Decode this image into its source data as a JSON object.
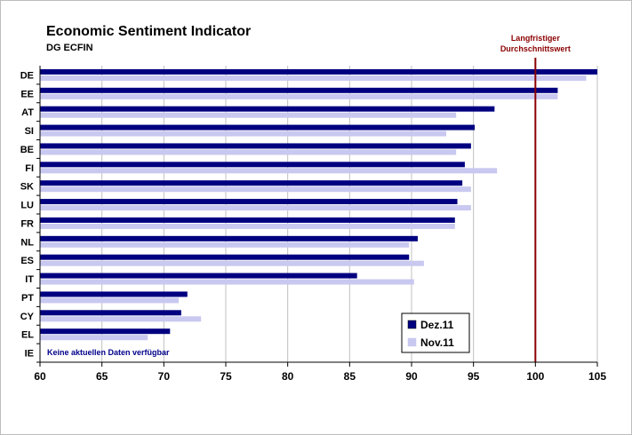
{
  "chart_data": {
    "type": "bar",
    "orientation": "horizontal",
    "title": "Economic Sentiment Indicator",
    "subtitle": "DG ECFIN",
    "categories": [
      "DE",
      "EE",
      "AT",
      "SI",
      "BE",
      "FI",
      "SK",
      "LU",
      "FR",
      "NL",
      "ES",
      "IT",
      "PT",
      "CY",
      "EL",
      "IE"
    ],
    "series": [
      {
        "name": "Dez.11",
        "color": "#000080",
        "values": [
          105.0,
          101.8,
          96.7,
          95.1,
          94.8,
          94.3,
          94.1,
          93.7,
          93.5,
          90.5,
          89.8,
          85.6,
          71.9,
          71.4,
          70.5,
          null
        ]
      },
      {
        "name": "Nov.11",
        "color": "#c8c8f0",
        "values": [
          104.1,
          101.8,
          93.6,
          92.8,
          93.6,
          96.9,
          94.8,
          94.8,
          93.5,
          89.8,
          91.0,
          90.2,
          71.2,
          73.0,
          68.7,
          null
        ]
      }
    ],
    "xlim": [
      60,
      105
    ],
    "xticks": [
      60,
      65,
      70,
      75,
      80,
      85,
      90,
      95,
      100,
      105
    ],
    "grid": true,
    "reference_line": {
      "value": 100,
      "label_lines": [
        "Langfristiger",
        "Durchschnittswert"
      ],
      "color": "#8b0000"
    },
    "annotation": "Keine aktuellen Daten verfügbar",
    "legend_position": "bottom-right"
  }
}
